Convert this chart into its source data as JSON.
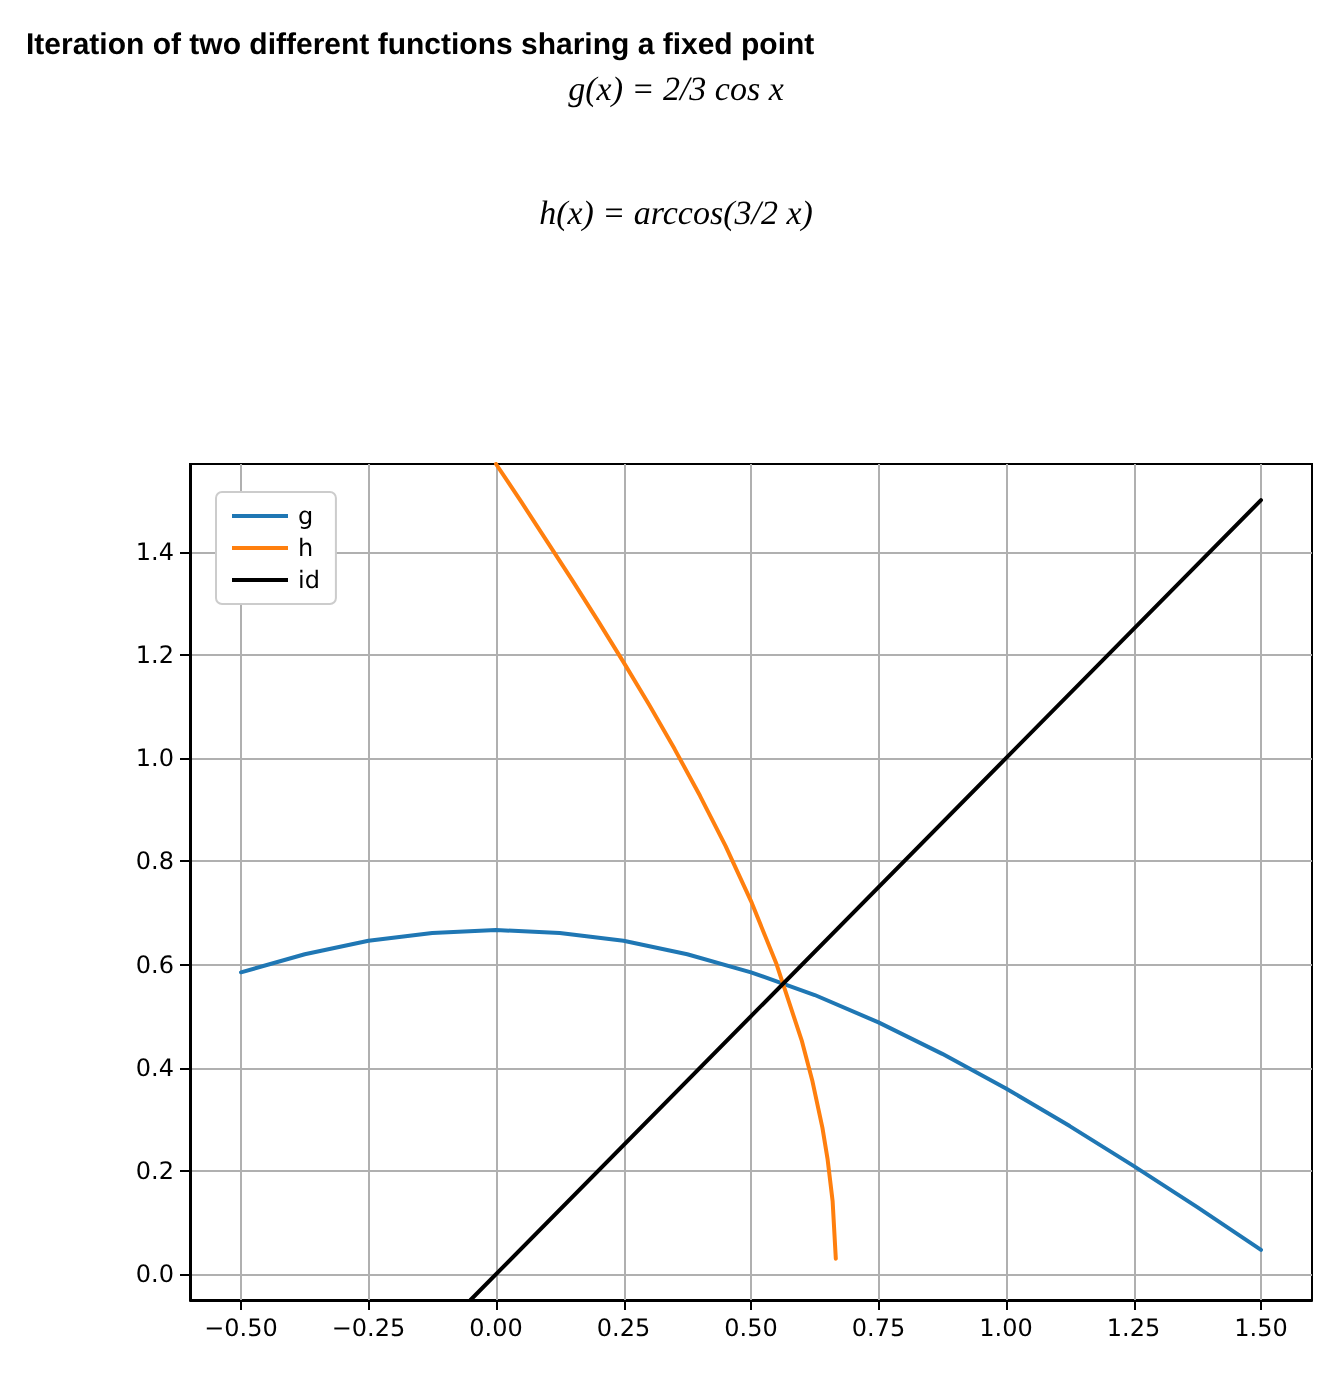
{
  "chart_data": {
    "type": "line",
    "title": "Iteration of two different functions sharing a fixed point",
    "annotations": [
      "g(x) = 2/3 cos x",
      "h(x) = arccos(3/2 x)"
    ],
    "series": [
      {
        "name": "g",
        "color": "#1f77b4",
        "x": [
          -0.5,
          -0.375,
          -0.25,
          -0.125,
          0,
          0.125,
          0.25,
          0.375,
          0.5,
          0.625,
          0.75,
          0.875,
          1.0,
          1.125,
          1.25,
          1.375,
          1.5
        ],
        "values": [
          0.585,
          0.62,
          0.646,
          0.661,
          0.667,
          0.661,
          0.646,
          0.62,
          0.585,
          0.541,
          0.488,
          0.427,
          0.36,
          0.287,
          0.21,
          0.13,
          0.047
        ]
      },
      {
        "name": "h",
        "color": "#ff7f0e",
        "x": [
          0,
          0.05,
          0.1,
          0.15,
          0.2,
          0.25,
          0.3,
          0.35,
          0.4,
          0.45,
          0.5,
          0.55,
          0.6,
          0.62,
          0.64,
          0.65,
          0.66,
          0.6663
        ],
        "values": [
          1.57,
          1.496,
          1.42,
          1.344,
          1.266,
          1.186,
          1.104,
          1.018,
          0.927,
          0.83,
          0.723,
          0.601,
          0.451,
          0.376,
          0.284,
          0.224,
          0.142,
          0.03
        ]
      },
      {
        "name": "id",
        "color": "#000000",
        "x": [
          -0.05,
          1.5
        ],
        "values": [
          -0.05,
          1.5
        ]
      }
    ],
    "xlim": [
      -0.6,
      1.6
    ],
    "ylim": [
      -0.05,
      1.57
    ],
    "xticks": [
      {
        "value": -0.5,
        "label": "−0.50"
      },
      {
        "value": -0.25,
        "label": "−0.25"
      },
      {
        "value": 0,
        "label": "0.00"
      },
      {
        "value": 0.25,
        "label": "0.25"
      },
      {
        "value": 0.5,
        "label": "0.50"
      },
      {
        "value": 0.75,
        "label": "0.75"
      },
      {
        "value": 1,
        "label": "1.00"
      },
      {
        "value": 1.25,
        "label": "1.25"
      },
      {
        "value": 1.5,
        "label": "1.50"
      }
    ],
    "yticks": [
      {
        "value": 0,
        "label": "0.0"
      },
      {
        "value": 0.2,
        "label": "0.2"
      },
      {
        "value": 0.4,
        "label": "0.4"
      },
      {
        "value": 0.6,
        "label": "0.6"
      },
      {
        "value": 0.8,
        "label": "0.8"
      },
      {
        "value": 1,
        "label": "1.0"
      },
      {
        "value": 1.2,
        "label": "1.2"
      },
      {
        "value": 1.4,
        "label": "1.4"
      }
    ],
    "grid": true,
    "legend": "top left",
    "marker": "none",
    "line_style": "solid"
  }
}
